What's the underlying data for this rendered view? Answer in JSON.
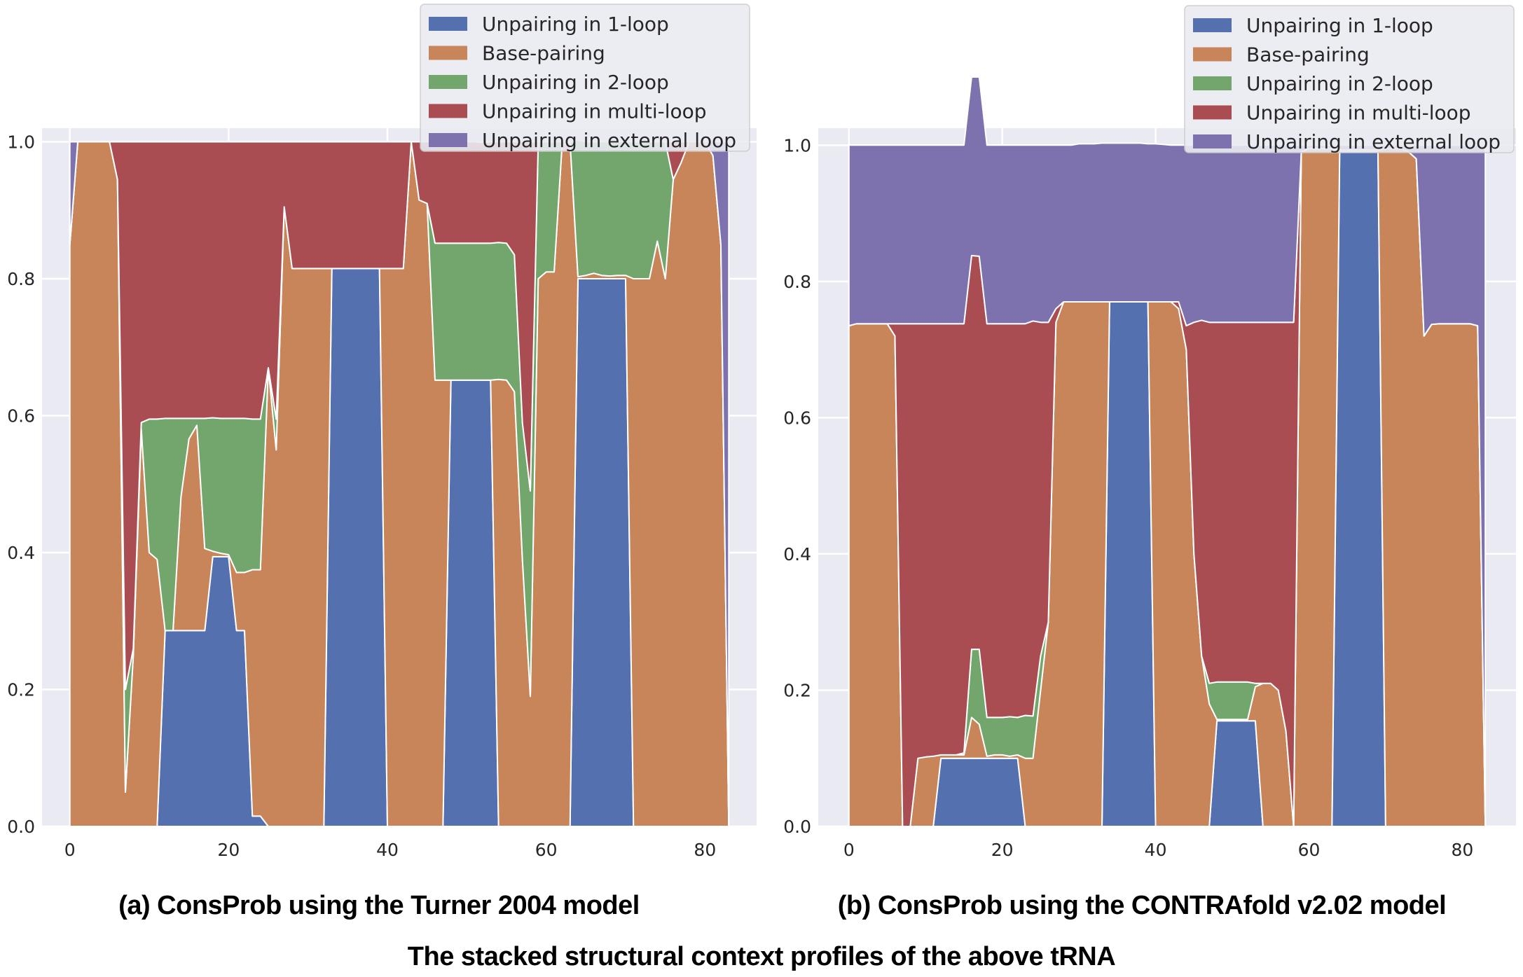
{
  "figure_caption": "The stacked structural context profiles of the above tRNA",
  "colors": {
    "plot_background": "#EAEAF2",
    "gridline": "#FFFFFF",
    "area_edge": "#FFFFFF",
    "tick_text": "#262626"
  },
  "chart_data": [
    {
      "type": "area",
      "stacked": true,
      "caption": "(a) ConsProb using the Turner 2004 model",
      "title": "",
      "xlabel": "",
      "ylabel": "",
      "xlim": [
        -3.5,
        86.5
      ],
      "ylim": [
        0,
        1.02
      ],
      "xticks": [
        0,
        20,
        40,
        60,
        80
      ],
      "yticks": [
        0.0,
        0.2,
        0.4,
        0.6,
        0.8,
        1.0
      ],
      "xtick_labels": [
        "0",
        "20",
        "40",
        "60",
        "80"
      ],
      "ytick_labels": [
        "0.0",
        "0.2",
        "0.4",
        "0.6",
        "0.8",
        "1.0"
      ],
      "grid": true,
      "legend_position": "top-right",
      "x": [
        0,
        1,
        2,
        3,
        4,
        5,
        6,
        7,
        8,
        9,
        10,
        11,
        12,
        13,
        14,
        15,
        16,
        17,
        18,
        19,
        20,
        21,
        22,
        23,
        24,
        25,
        26,
        27,
        28,
        29,
        30,
        31,
        32,
        33,
        34,
        35,
        36,
        37,
        38,
        39,
        40,
        41,
        42,
        43,
        44,
        45,
        46,
        47,
        48,
        49,
        50,
        51,
        52,
        53,
        54,
        55,
        56,
        57,
        58,
        59,
        60,
        61,
        62,
        63,
        64,
        65,
        66,
        67,
        68,
        69,
        70,
        71,
        72,
        73,
        74,
        75,
        76,
        77,
        78,
        79,
        80,
        81,
        82,
        83
      ],
      "series": [
        {
          "name": "Unpairing in 1-loop",
          "color": "#5470AF",
          "values": [
            0,
            0,
            0,
            0,
            0,
            0,
            0,
            0,
            0,
            0,
            0,
            0,
            0.286,
            0.286,
            0.286,
            0.286,
            0.286,
            0.286,
            0.394,
            0.394,
            0.394,
            0.286,
            0.286,
            0.015,
            0.015,
            0,
            0,
            0,
            0,
            0,
            0,
            0,
            0,
            0.815,
            0.815,
            0.815,
            0.815,
            0.815,
            0.815,
            0.815,
            0,
            0,
            0,
            0,
            0,
            0,
            0,
            0,
            0.652,
            0.652,
            0.652,
            0.652,
            0.652,
            0.652,
            0,
            0,
            0,
            0,
            0,
            0,
            0,
            0,
            0,
            0,
            0.8,
            0.8,
            0.8,
            0.8,
            0.8,
            0.8,
            0.8,
            0,
            0,
            0,
            0,
            0,
            0,
            0,
            0,
            0,
            0,
            0,
            0,
            0
          ]
        },
        {
          "name": "Base-pairing",
          "color": "#C8855A",
          "values": [
            0.85,
            1.0,
            1.0,
            1.0,
            1.0,
            1.0,
            0.945,
            0.05,
            0.25,
            0.58,
            0.4,
            0.39,
            0,
            0,
            0.195,
            0.28,
            0.3,
            0.12,
            0.008,
            0.005,
            0.003,
            0.085,
            0.085,
            0.36,
            0.36,
            0.67,
            0.55,
            0.905,
            0.815,
            0.815,
            0.815,
            0.815,
            0.815,
            0,
            0,
            0,
            0,
            0,
            0,
            0,
            0.815,
            0.815,
            0.815,
            1.0,
            0.915,
            0.91,
            0.652,
            0.652,
            0,
            0,
            0,
            0,
            0,
            0,
            0.653,
            0.652,
            0.635,
            0.39,
            0.19,
            0.8,
            0.81,
            0.81,
            0.995,
            1.0,
            0.003,
            0.005,
            0.008,
            0.005,
            0.004,
            0.005,
            0.005,
            0.8,
            0.8,
            0.8,
            0.855,
            0.8,
            0.945,
            0.97,
            1.0,
            1.0,
            1.0,
            0.98,
            0.85,
            0
          ]
        },
        {
          "name": "Unpairing in 2-loop",
          "color": "#73A66D",
          "values": [
            0,
            0,
            0,
            0,
            0,
            0,
            0,
            0.15,
            0.01,
            0.01,
            0.195,
            0.205,
            0.31,
            0.31,
            0.115,
            0.03,
            0.01,
            0.19,
            0.195,
            0.197,
            0.199,
            0.225,
            0.225,
            0.22,
            0.22,
            0,
            0.045,
            0,
            0,
            0,
            0,
            0,
            0,
            0,
            0,
            0,
            0,
            0,
            0,
            0,
            0,
            0,
            0,
            0,
            0,
            0,
            0.2,
            0.2,
            0.2,
            0.2,
            0.2,
            0.2,
            0.2,
            0.2,
            0.2,
            0.2,
            0.2,
            0.2,
            0.3,
            0.2,
            0.19,
            0.19,
            0.005,
            0,
            0.2,
            0.195,
            0.192,
            0.195,
            0.196,
            0.195,
            0.195,
            0.2,
            0.2,
            0.2,
            0.145,
            0.2,
            0,
            0,
            0,
            0,
            0,
            0,
            0,
            0
          ]
        },
        {
          "name": "Unpairing in multi-loop",
          "color": "#A94D53",
          "values": [
            0,
            0,
            0,
            0,
            0,
            0,
            0.055,
            0.8,
            0.74,
            0.41,
            0.405,
            0.405,
            0.404,
            0.404,
            0.404,
            0.404,
            0.404,
            0.404,
            0.403,
            0.404,
            0.404,
            0.404,
            0.404,
            0.405,
            0.405,
            0.33,
            0.405,
            0.095,
            0.185,
            0.185,
            0.185,
            0.185,
            0.185,
            0.185,
            0.185,
            0.185,
            0.185,
            0.185,
            0.185,
            0.185,
            0.185,
            0.185,
            0.185,
            0,
            0.085,
            0.09,
            0.148,
            0.148,
            0.148,
            0.148,
            0.148,
            0.148,
            0.147,
            0.148,
            0.147,
            0.148,
            0.165,
            0.41,
            0.51,
            0,
            0,
            0,
            0,
            0,
            0,
            0,
            0,
            0,
            0,
            0,
            0,
            0,
            0,
            0,
            0,
            0,
            0.055,
            0.03,
            0,
            0,
            0,
            0,
            0,
            0
          ]
        },
        {
          "name": "Unpairing in external loop",
          "color": "#7D72AD",
          "values": [
            0.15,
            0,
            0,
            0,
            0,
            0,
            0,
            0,
            0,
            0,
            0,
            0,
            0,
            0,
            0,
            0,
            0,
            0,
            0,
            0,
            0,
            0,
            0,
            0,
            0,
            0,
            0,
            0,
            0,
            0,
            0,
            0,
            0,
            0,
            0,
            0,
            0,
            0,
            0,
            0,
            0,
            0,
            0,
            0,
            0,
            0,
            0,
            0,
            0,
            0,
            0,
            0,
            0,
            0,
            0,
            0,
            0,
            0,
            0,
            0,
            0,
            0,
            0,
            0,
            0,
            0,
            0,
            0,
            0,
            0,
            0,
            0,
            0,
            0,
            0,
            0,
            0,
            0,
            0,
            0,
            0,
            0.02,
            0.15,
            1.0
          ]
        }
      ]
    },
    {
      "type": "area",
      "stacked": true,
      "caption": "(b) ConsProb using the CONTRAfold v2.02 model",
      "title": "",
      "xlabel": "",
      "ylabel": "",
      "xlim": [
        -4,
        87
      ],
      "ylim": [
        0,
        1.025
      ],
      "xticks": [
        0,
        20,
        40,
        60,
        80
      ],
      "yticks": [
        0.0,
        0.2,
        0.4,
        0.6,
        0.8,
        1.0
      ],
      "xtick_labels": [
        "0",
        "20",
        "40",
        "60",
        "80"
      ],
      "ytick_labels": [
        "0.0",
        "0.2",
        "0.4",
        "0.6",
        "0.8",
        "1.0"
      ],
      "grid": true,
      "legend_position": "top-right",
      "x": [
        0,
        1,
        2,
        3,
        4,
        5,
        6,
        7,
        8,
        9,
        10,
        11,
        12,
        13,
        14,
        15,
        16,
        17,
        18,
        19,
        20,
        21,
        22,
        23,
        24,
        25,
        26,
        27,
        28,
        29,
        30,
        31,
        32,
        33,
        34,
        35,
        36,
        37,
        38,
        39,
        40,
        41,
        42,
        43,
        44,
        45,
        46,
        47,
        48,
        49,
        50,
        51,
        52,
        53,
        54,
        55,
        56,
        57,
        58,
        59,
        60,
        61,
        62,
        63,
        64,
        65,
        66,
        67,
        68,
        69,
        70,
        71,
        72,
        73,
        74,
        75,
        76,
        77,
        78,
        79,
        80,
        81,
        82,
        83
      ],
      "series": [
        {
          "name": "Unpairing in 1-loop",
          "color": "#5470AF",
          "values": [
            0,
            0,
            0,
            0,
            0,
            0,
            0,
            0,
            0,
            0,
            0,
            0,
            0.1,
            0.1,
            0.1,
            0.1,
            0.1,
            0.1,
            0.1,
            0.1,
            0.1,
            0.1,
            0.1,
            0,
            0,
            0,
            0,
            0,
            0,
            0,
            0,
            0,
            0,
            0,
            0.77,
            0.77,
            0.77,
            0.77,
            0.77,
            0.77,
            0,
            0,
            0,
            0,
            0,
            0,
            0,
            0,
            0.155,
            0.155,
            0.155,
            0.155,
            0.155,
            0.155,
            0,
            0,
            0,
            0,
            0,
            0,
            0,
            0,
            0,
            0,
            0.99,
            0.99,
            0.99,
            0.99,
            0.99,
            0.99,
            0,
            0,
            0,
            0,
            0,
            0,
            0,
            0,
            0,
            0,
            0,
            0,
            0,
            0
          ]
        },
        {
          "name": "Base-pairing",
          "color": "#C8855A",
          "values": [
            0.735,
            0.738,
            0.738,
            0.738,
            0.738,
            0.738,
            0.72,
            0,
            0,
            0.1,
            0.102,
            0.103,
            0.005,
            0.005,
            0.005,
            0.005,
            0.06,
            0.05,
            0.003,
            0.005,
            0.005,
            0.003,
            0.005,
            0.1,
            0.1,
            0.2,
            0.3,
            0.74,
            0.77,
            0.77,
            0.77,
            0.77,
            0.77,
            0.77,
            0,
            0,
            0,
            0,
            0,
            0,
            0.77,
            0.77,
            0.77,
            0.76,
            0.7,
            0.4,
            0.25,
            0.18,
            0.002,
            0.002,
            0.002,
            0.002,
            0.002,
            0.05,
            0.21,
            0.21,
            0.2,
            0.14,
            0,
            0.99,
            0.995,
            0.995,
            0.995,
            0.995,
            0.003,
            0.003,
            0.003,
            0.003,
            0.003,
            0.003,
            0.995,
            0.995,
            0.995,
            0.99,
            0.98,
            0.72,
            0.737,
            0.738,
            0.738,
            0.738,
            0.738,
            0.738,
            0.735,
            0
          ]
        },
        {
          "name": "Unpairing in 2-loop",
          "color": "#73A66D",
          "values": [
            0,
            0,
            0,
            0,
            0,
            0,
            0,
            0,
            0,
            0,
            0,
            0,
            0,
            0,
            0,
            0.003,
            0.1,
            0.11,
            0.057,
            0.055,
            0.055,
            0.058,
            0.055,
            0.063,
            0.062,
            0.05,
            0,
            0,
            0,
            0,
            0,
            0,
            0,
            0,
            0,
            0,
            0,
            0,
            0,
            0,
            0,
            0,
            0,
            0,
            0,
            0,
            0,
            0.03,
            0.055,
            0.055,
            0.055,
            0.055,
            0.055,
            0.005,
            0,
            0,
            0,
            0,
            0,
            0,
            0,
            0,
            0,
            0,
            0,
            0,
            0,
            0,
            0,
            0,
            0,
            0,
            0,
            0,
            0,
            0,
            0,
            0,
            0,
            0,
            0,
            0,
            0,
            0
          ]
        },
        {
          "name": "Unpairing in multi-loop",
          "color": "#A94D53",
          "values": [
            0,
            0,
            0,
            0,
            0,
            0,
            0.018,
            0.738,
            0.738,
            0.638,
            0.636,
            0.635,
            0.633,
            0.633,
            0.633,
            0.63,
            0.578,
            0.577,
            0.578,
            0.578,
            0.578,
            0.577,
            0.578,
            0.575,
            0.58,
            0.49,
            0.44,
            0.02,
            0,
            0,
            0,
            0,
            0,
            0,
            0,
            0,
            0,
            0,
            0,
            0,
            0,
            0,
            0,
            0.01,
            0.035,
            0.34,
            0.493,
            0.53,
            0.528,
            0.528,
            0.528,
            0.528,
            0.528,
            0.53,
            0.53,
            0.53,
            0.54,
            0.6,
            0.74,
            0,
            0,
            0,
            0,
            0,
            0,
            0,
            0,
            0,
            0,
            0,
            0,
            0,
            0,
            0,
            0,
            0,
            0,
            0,
            0,
            0,
            0,
            0,
            0,
            0
          ]
        },
        {
          "name": "Unpairing in external loop",
          "color": "#7D72AD",
          "values": [
            0.265,
            0.262,
            0.262,
            0.262,
            0.262,
            0.262,
            0.262,
            0.262,
            0.262,
            0.262,
            0.262,
            0.262,
            0.262,
            0.262,
            0.262,
            0.262,
            0.262,
            0.263,
            0.262,
            0.262,
            0.262,
            0.262,
            0.262,
            0.262,
            0.258,
            0.26,
            0.26,
            0.24,
            0.23,
            0.23,
            0.232,
            0.232,
            0.232,
            0.233,
            0.233,
            0.233,
            0.233,
            0.233,
            0.233,
            0.232,
            0.232,
            0.231,
            0.23,
            0.23,
            0.265,
            0.26,
            0.257,
            0.26,
            0.26,
            0.26,
            0.26,
            0.26,
            0.26,
            0.26,
            0.26,
            0.26,
            0.26,
            0.26,
            0.26,
            0.01,
            0.005,
            0.005,
            0.005,
            0.005,
            0.007,
            0.007,
            0.007,
            0.007,
            0.007,
            0.007,
            0.005,
            0.005,
            0.005,
            0.01,
            0.02,
            0.28,
            0.263,
            0.262,
            0.262,
            0.262,
            0.262,
            0.262,
            0.265,
            1.0
          ]
        }
      ]
    }
  ]
}
